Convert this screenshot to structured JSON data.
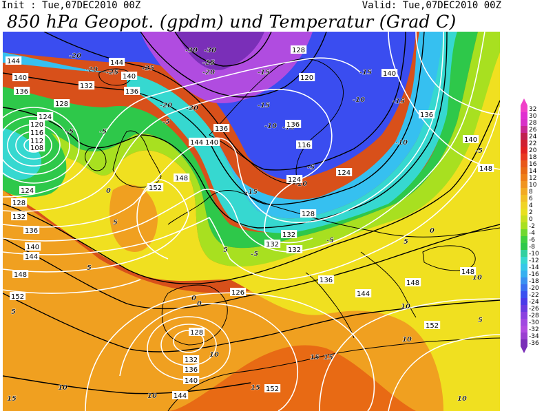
{
  "header": {
    "init": "Init : Tue,07DEC2010 00Z",
    "valid": "Valid: Tue,07DEC2010 00Z",
    "title": "850 hPa Geopot. (gpdm) und Temperatur (Grad C)"
  },
  "colors": {
    "deep_purple": "#7a2fb8",
    "violet": "#b04ce0",
    "blue": "#3a4df0",
    "light_blue": "#36c0f0",
    "cyan": "#36d8d0",
    "green": "#2ec84a",
    "lime": "#a8e020",
    "yellow": "#f0e020",
    "orange": "#f0a020",
    "dark_orange": "#e86a14",
    "red_orange": "#d8501a"
  },
  "legend": {
    "levels": [
      "32",
      "30",
      "28",
      "26",
      "24",
      "22",
      "20",
      "18",
      "16",
      "14",
      "12",
      "10",
      "8",
      "6",
      "4",
      "2",
      "0",
      "-2",
      "-4",
      "-6",
      "-8",
      "-10",
      "-12",
      "-14",
      "-16",
      "-18",
      "-20",
      "-22",
      "-24",
      "-26",
      "-28",
      "-30",
      "-32",
      "-34",
      "-36"
    ],
    "colors": [
      "#f040c8",
      "#e030d0",
      "#d830c8",
      "#c82890",
      "#c02050",
      "#d02030",
      "#e02020",
      "#e83820",
      "#e85818",
      "#e86a14",
      "#ee7e18",
      "#f09420",
      "#f2aa22",
      "#f2c024",
      "#f0d424",
      "#e8e020",
      "#c8e020",
      "#a8e020",
      "#70d830",
      "#40d040",
      "#2ec84a",
      "#30d0a0",
      "#36d8d0",
      "#36c8e8",
      "#36b0f0",
      "#3a90f0",
      "#3a70f0",
      "#3a50f0",
      "#4a3ae8",
      "#6a3ae0",
      "#8a40e0",
      "#a048e0",
      "#b04ce0",
      "#9a40d0",
      "#7a2fb8"
    ]
  },
  "map": {
    "temperature_labels": [
      {
        "t": "-20"
      },
      {
        "t": "-20"
      },
      {
        "t": "-25"
      },
      {
        "t": "-25"
      },
      {
        "t": "-30"
      },
      {
        "t": "-30"
      },
      {
        "t": "-25"
      },
      {
        "t": "-20"
      },
      {
        "t": "-20"
      },
      {
        "t": "-20"
      },
      {
        "t": "-15"
      },
      {
        "t": "-15"
      },
      {
        "t": "-10"
      },
      {
        "t": "-10"
      },
      {
        "t": "-10"
      },
      {
        "t": "-5"
      },
      {
        "t": "-5"
      },
      {
        "t": "-5"
      },
      {
        "t": "-5"
      },
      {
        "t": "-5"
      },
      {
        "t": "-10"
      },
      {
        "t": "-15"
      },
      {
        "t": "-15"
      },
      {
        "t": "-10"
      },
      {
        "t": "-5"
      },
      {
        "t": "0"
      },
      {
        "t": "0"
      },
      {
        "t": "5"
      },
      {
        "t": "5"
      },
      {
        "t": "5"
      },
      {
        "t": "10"
      },
      {
        "t": "10"
      },
      {
        "t": "10"
      },
      {
        "t": "15"
      },
      {
        "t": "15"
      },
      {
        "t": "15"
      },
      {
        "t": "10"
      },
      {
        "t": "10"
      },
      {
        "t": "5"
      },
      {
        "t": "5"
      },
      {
        "t": "0"
      },
      {
        "t": "0"
      },
      {
        "t": "10"
      },
      {
        "t": "5"
      },
      {
        "t": "-5"
      },
      {
        "t": "-15"
      },
      {
        "t": "15"
      },
      {
        "t": "10"
      }
    ],
    "height_labels": [
      {
        "t": "144"
      },
      {
        "t": "140"
      },
      {
        "t": "136"
      },
      {
        "t": "132"
      },
      {
        "t": "128"
      },
      {
        "t": "124"
      },
      {
        "t": "120"
      },
      {
        "t": "116"
      },
      {
        "t": "112"
      },
      {
        "t": "108"
      },
      {
        "t": "124"
      },
      {
        "t": "128"
      },
      {
        "t": "132"
      },
      {
        "t": "136"
      },
      {
        "t": "140"
      },
      {
        "t": "144"
      },
      {
        "t": "148"
      },
      {
        "t": "152"
      },
      {
        "t": "144"
      },
      {
        "t": "140"
      },
      {
        "t": "136"
      },
      {
        "t": "152"
      },
      {
        "t": "148"
      },
      {
        "t": "144"
      },
      {
        "t": "140"
      },
      {
        "t": "136"
      },
      {
        "t": "128"
      },
      {
        "t": "120"
      },
      {
        "t": "124"
      },
      {
        "t": "116"
      },
      {
        "t": "124"
      },
      {
        "t": "128"
      },
      {
        "t": "132"
      },
      {
        "t": "132"
      },
      {
        "t": "136"
      },
      {
        "t": "126"
      },
      {
        "t": "140"
      },
      {
        "t": "136"
      },
      {
        "t": "140"
      },
      {
        "t": "148"
      },
      {
        "t": "148"
      },
      {
        "t": "152"
      },
      {
        "t": "144"
      },
      {
        "t": "148"
      },
      {
        "t": "152"
      },
      {
        "t": "128"
      },
      {
        "t": "132"
      },
      {
        "t": "136"
      },
      {
        "t": "140"
      },
      {
        "t": "144"
      },
      {
        "t": "132"
      },
      {
        "t": "136"
      }
    ]
  }
}
